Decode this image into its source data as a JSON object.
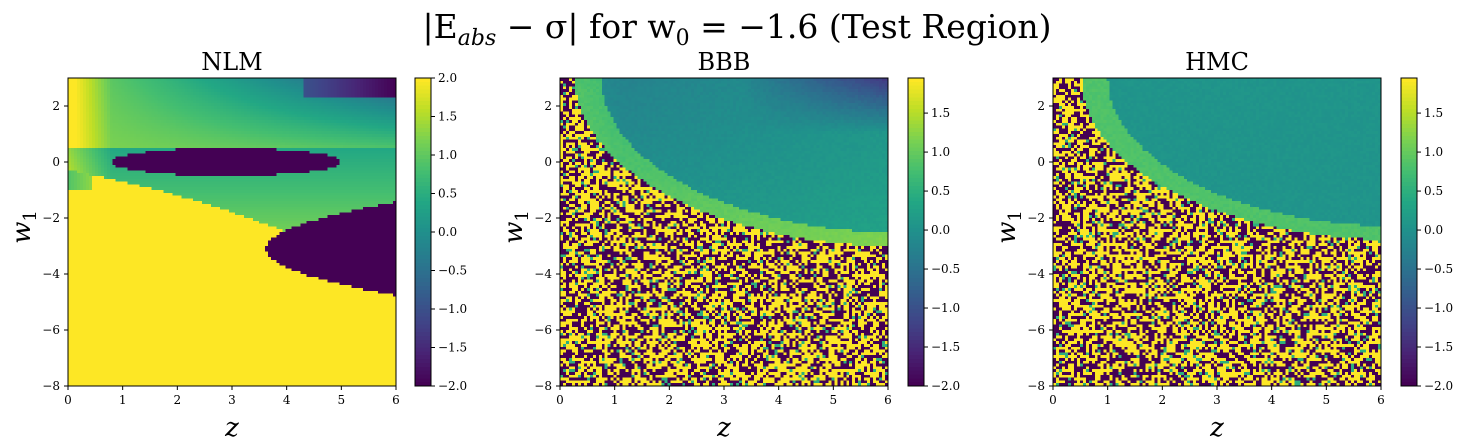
{
  "figure": {
    "title_prefix": "|E",
    "title_sub": "abs",
    "title_mid": " − σ| for w",
    "title_sub2": "0",
    "title_suffix": " = −1.6 (Test Region)"
  },
  "chart_data": [
    {
      "type": "heatmap",
      "title": "NLM",
      "xlabel": "z",
      "ylabel": "w",
      "ylabel_sub": "1",
      "xlim": [
        0,
        6
      ],
      "ylim": [
        -8,
        3
      ],
      "xticks": [
        "0",
        "1",
        "2",
        "3",
        "4",
        "5",
        "6"
      ],
      "yticks": [
        "2",
        "0",
        "−2",
        "−4",
        "−6",
        "−8"
      ],
      "colorbar": {
        "range": [
          -2.0,
          2.0
        ],
        "ticks": [
          "2.0",
          "1.5",
          "1.0",
          "0.5",
          "0.0",
          "−0.5",
          "−1.0",
          "−1.5",
          "−2.0"
        ],
        "colormap": "viridis"
      },
      "pattern": "nlm"
    },
    {
      "type": "heatmap",
      "title": "BBB",
      "xlabel": "z",
      "ylabel": "w",
      "ylabel_sub": "1",
      "xlim": [
        0,
        6
      ],
      "ylim": [
        -8,
        3
      ],
      "xticks": [
        "0",
        "1",
        "2",
        "3",
        "4",
        "5",
        "6"
      ],
      "yticks": [
        "2",
        "0",
        "−2",
        "−4",
        "−6",
        "−8"
      ],
      "colorbar": {
        "range": [
          -2.0,
          1.95
        ],
        "ticks": [
          "1.5",
          "1.0",
          "0.5",
          "0.0",
          "−0.5",
          "−1.0",
          "−1.5",
          "−2.0"
        ],
        "colormap": "viridis"
      },
      "pattern": "bbb"
    },
    {
      "type": "heatmap",
      "title": "HMC",
      "xlabel": "z",
      "ylabel": "w",
      "ylabel_sub": "1",
      "xlim": [
        0,
        6
      ],
      "ylim": [
        -8,
        3
      ],
      "xticks": [
        "0",
        "1",
        "2",
        "3",
        "4",
        "5",
        "6"
      ],
      "yticks": [
        "2",
        "0",
        "−2",
        "−4",
        "−6",
        "−8"
      ],
      "colorbar": {
        "range": [
          -2.0,
          1.95
        ],
        "ticks": [
          "1.5",
          "1.0",
          "0.5",
          "0.0",
          "−0.5",
          "−1.0",
          "−1.5",
          "−2.0"
        ],
        "colormap": "viridis"
      },
      "pattern": "hmc"
    }
  ]
}
